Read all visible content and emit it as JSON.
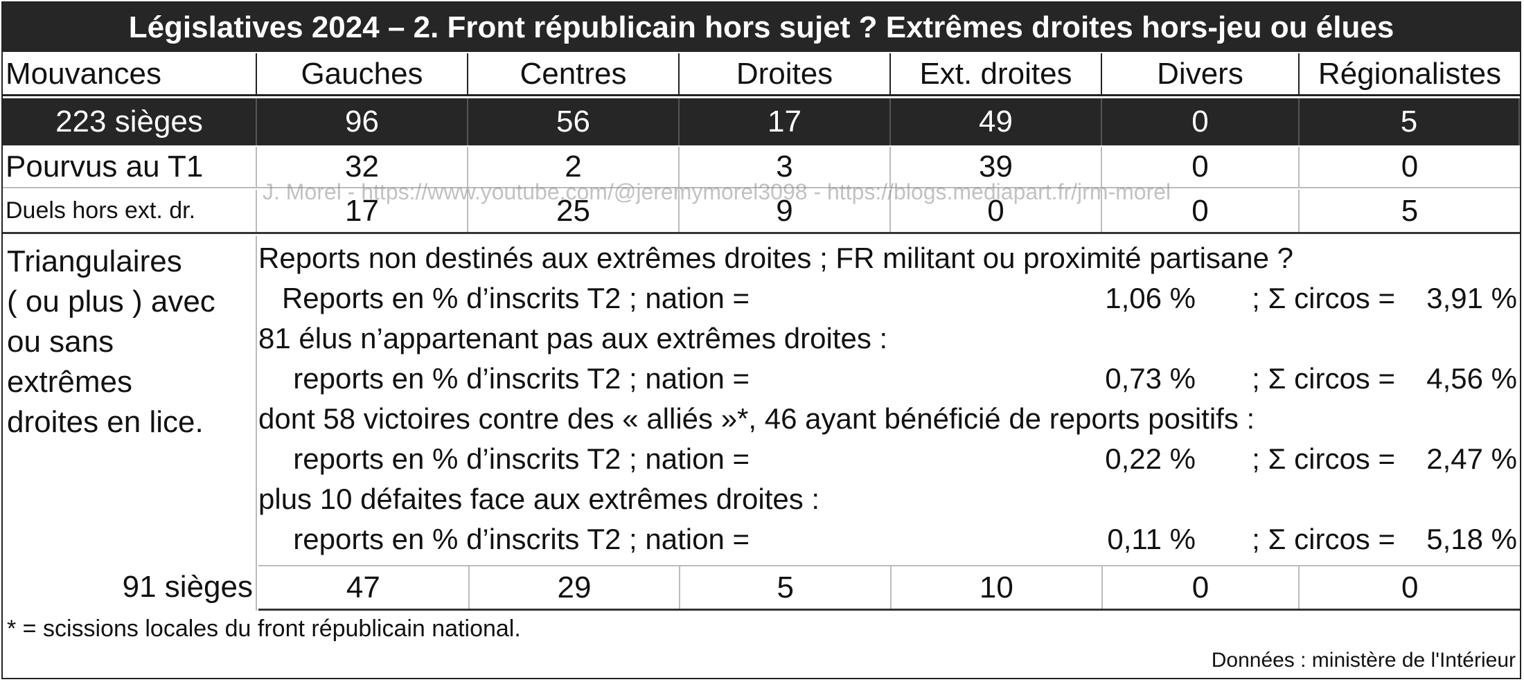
{
  "title": "Législatives 2024 – 2. Front républicain hors sujet ? Extrêmes droites hors-jeu ou élues",
  "header": [
    "Mouvances",
    "Gauches",
    "Centres",
    "Droites",
    "Ext. droites",
    "Divers",
    "Régionalistes"
  ],
  "seats_row": [
    "223 sièges",
    "96",
    "56",
    "17",
    "49",
    "0",
    "5"
  ],
  "row_t1": [
    "Pourvus au T1",
    "32",
    "2",
    "3",
    "39",
    "0",
    "0"
  ],
  "row_duels": [
    "Duels hors ext. dr.",
    "17",
    "25",
    "9",
    "0",
    "0",
    "5"
  ],
  "watermark": "J. Morel - https://www.youtube.com/@jeremymorel3098 - https://blogs.mediapart.fr/jrm-morel",
  "triangulaires": {
    "label_lines": [
      "Triangulaires",
      "( ou plus ) avec",
      "ou sans",
      "extrêmes",
      "droites en lice."
    ],
    "lines": [
      "Reports non destinés aux extrêmes droites ; FR militant ou proximité partisane ?",
      "81 élus n’appartenant pas aux extrêmes droites :",
      "dont 58 victoires contre des « alliés »*, 46 ayant bénéficié de reports positifs :",
      "plus 10 défaites face aux extrêmes droites :"
    ],
    "reports": [
      {
        "label": "Reports en % d’inscrits T2 ; nation =",
        "nation": "1,06 %",
        "circos_label": "; Σ circos =",
        "circos": "3,91 %"
      },
      {
        "label": "reports en % d’inscrits T2 ; nation =",
        "nation": "0,73 %",
        "circos_label": "; Σ circos =",
        "circos": "4,56 %"
      },
      {
        "label": "reports en % d’inscrits T2 ; nation =",
        "nation": "0,22 %",
        "circos_label": "; Σ circos =",
        "circos": "2,47 %"
      },
      {
        "label": "reports en % d’inscrits T2 ; nation =",
        "nation": "0,11 %",
        "circos_label": "; Σ circos =",
        "circos": "5,18 %"
      }
    ],
    "seats_label": "91 sièges",
    "seats_values": [
      "47",
      "29",
      "5",
      "10",
      "0",
      "0"
    ]
  },
  "footnote": "* = scissions locales du front républicain national.",
  "source": "Données : ministère de l'Intérieur"
}
